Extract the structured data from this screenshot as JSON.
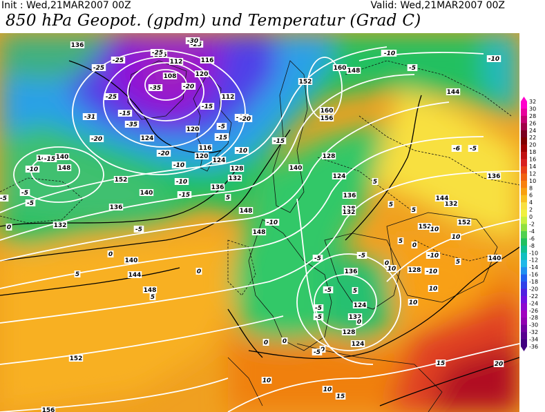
{
  "header": {
    "init": "Init : Wed,21MAR2007 00Z",
    "valid": "Valid: Wed,21MAR2007 00Z",
    "title": "850 hPa Geopot. (gpdm) und Temperatur (Grad C)"
  },
  "legend": {
    "ticks": [
      "32",
      "30",
      "28",
      "26",
      "24",
      "22",
      "20",
      "18",
      "16",
      "14",
      "12",
      "10",
      "8",
      "6",
      "4",
      "2",
      "0",
      "-2",
      "-4",
      "-6",
      "-8",
      "-10",
      "-12",
      "-14",
      "-16",
      "-18",
      "-20",
      "-22",
      "-24",
      "-26",
      "-28",
      "-30",
      "-32",
      "-34",
      "-36"
    ],
    "colors": [
      "#ff00cc",
      "#e8009c",
      "#c40070",
      "#a00048",
      "#7a0020",
      "#800000",
      "#a00000",
      "#c01010",
      "#d82020",
      "#e84018",
      "#f06010",
      "#f88010",
      "#f8a010",
      "#f8c020",
      "#f8e040",
      "#f0f040",
      "#c8f040",
      "#90e040",
      "#50d050",
      "#20c060",
      "#10c090",
      "#10c0c0",
      "#20b8e8",
      "#2090f0",
      "#2060f0",
      "#3040e8",
      "#5020e0",
      "#7010e0",
      "#8c08d0",
      "#a000c0",
      "#9000b0",
      "#7000a0",
      "#580090",
      "#400080"
    ]
  },
  "geopot_labels": [
    {
      "t": "136"
    },
    {
      "t": "116"
    },
    {
      "t": "112"
    },
    {
      "t": "108"
    },
    {
      "t": "116"
    },
    {
      "t": "120"
    },
    {
      "t": "112"
    },
    {
      "t": "120"
    },
    {
      "t": "124"
    },
    {
      "t": "116"
    },
    {
      "t": "120"
    },
    {
      "t": "124"
    },
    {
      "t": "128"
    },
    {
      "t": "132"
    },
    {
      "t": "136"
    },
    {
      "t": "140"
    },
    {
      "t": "144"
    },
    {
      "t": "148"
    },
    {
      "t": "152"
    },
    {
      "t": "140"
    },
    {
      "t": "136"
    },
    {
      "t": "132"
    },
    {
      "t": "140"
    },
    {
      "t": "144"
    },
    {
      "t": "148"
    },
    {
      "t": "152"
    },
    {
      "t": "156"
    },
    {
      "t": "160"
    },
    {
      "t": "160"
    },
    {
      "t": "156"
    },
    {
      "t": "128"
    },
    {
      "t": "124"
    },
    {
      "t": "128"
    },
    {
      "t": "132"
    },
    {
      "t": "136"
    },
    {
      "t": "140"
    },
    {
      "t": "136"
    },
    {
      "t": "132"
    },
    {
      "t": "128"
    },
    {
      "t": "124"
    },
    {
      "t": "128"
    },
    {
      "t": "132"
    },
    {
      "t": "136"
    },
    {
      "t": "140"
    },
    {
      "t": "144"
    },
    {
      "t": "144"
    },
    {
      "t": "152"
    },
    {
      "t": "152"
    },
    {
      "t": "148"
    },
    {
      "t": "148"
    },
    {
      "t": "148"
    },
    {
      "t": "152"
    },
    {
      "t": "124"
    }
  ],
  "temp_labels": [
    {
      "t": "-25"
    },
    {
      "t": "-25"
    },
    {
      "t": "-25"
    },
    {
      "t": "-25"
    },
    {
      "t": "-30"
    },
    {
      "t": "-35"
    },
    {
      "t": "-35"
    },
    {
      "t": "-20"
    },
    {
      "t": "-31"
    },
    {
      "t": "-25"
    },
    {
      "t": "-20"
    },
    {
      "t": "-15"
    },
    {
      "t": "-20"
    },
    {
      "t": "-15"
    },
    {
      "t": "-10"
    },
    {
      "t": "-15"
    },
    {
      "t": "-10"
    },
    {
      "t": "-5"
    },
    {
      "t": "-10"
    },
    {
      "t": "-15"
    },
    {
      "t": "-10"
    },
    {
      "t": "-5"
    },
    {
      "t": "-15"
    },
    {
      "t": "-10"
    },
    {
      "t": "-5"
    },
    {
      "t": "0"
    },
    {
      "t": "-5"
    },
    {
      "t": "-10"
    },
    {
      "t": "-15"
    },
    {
      "t": "-20"
    },
    {
      "t": "-15"
    },
    {
      "t": "-5"
    },
    {
      "t": "-10"
    },
    {
      "t": "-5"
    },
    {
      "t": "-10"
    },
    {
      "t": "-5"
    },
    {
      "t": "-6"
    },
    {
      "t": "-5"
    },
    {
      "t": "-5"
    },
    {
      "t": "-5"
    },
    {
      "t": "-5"
    },
    {
      "t": "0"
    },
    {
      "t": "5"
    },
    {
      "t": "0"
    },
    {
      "t": "5"
    },
    {
      "t": "5"
    },
    {
      "t": "0"
    },
    {
      "t": "-5"
    },
    {
      "t": "0"
    },
    {
      "t": "5"
    },
    {
      "t": "10"
    },
    {
      "t": "10"
    },
    {
      "t": "10"
    },
    {
      "t": "5"
    },
    {
      "t": "10"
    },
    {
      "t": "10"
    },
    {
      "t": "15"
    },
    {
      "t": "15"
    },
    {
      "t": "20"
    },
    {
      "t": "10"
    },
    {
      "t": "5"
    },
    {
      "t": "5"
    },
    {
      "t": "0"
    },
    {
      "t": "0"
    },
    {
      "t": "5"
    },
    {
      "t": "0"
    },
    {
      "t": "10"
    },
    {
      "t": "5"
    },
    {
      "t": "-5"
    },
    {
      "t": "0"
    },
    {
      "t": "-10"
    },
    {
      "t": "-10"
    },
    {
      "t": "-5"
    }
  ]
}
